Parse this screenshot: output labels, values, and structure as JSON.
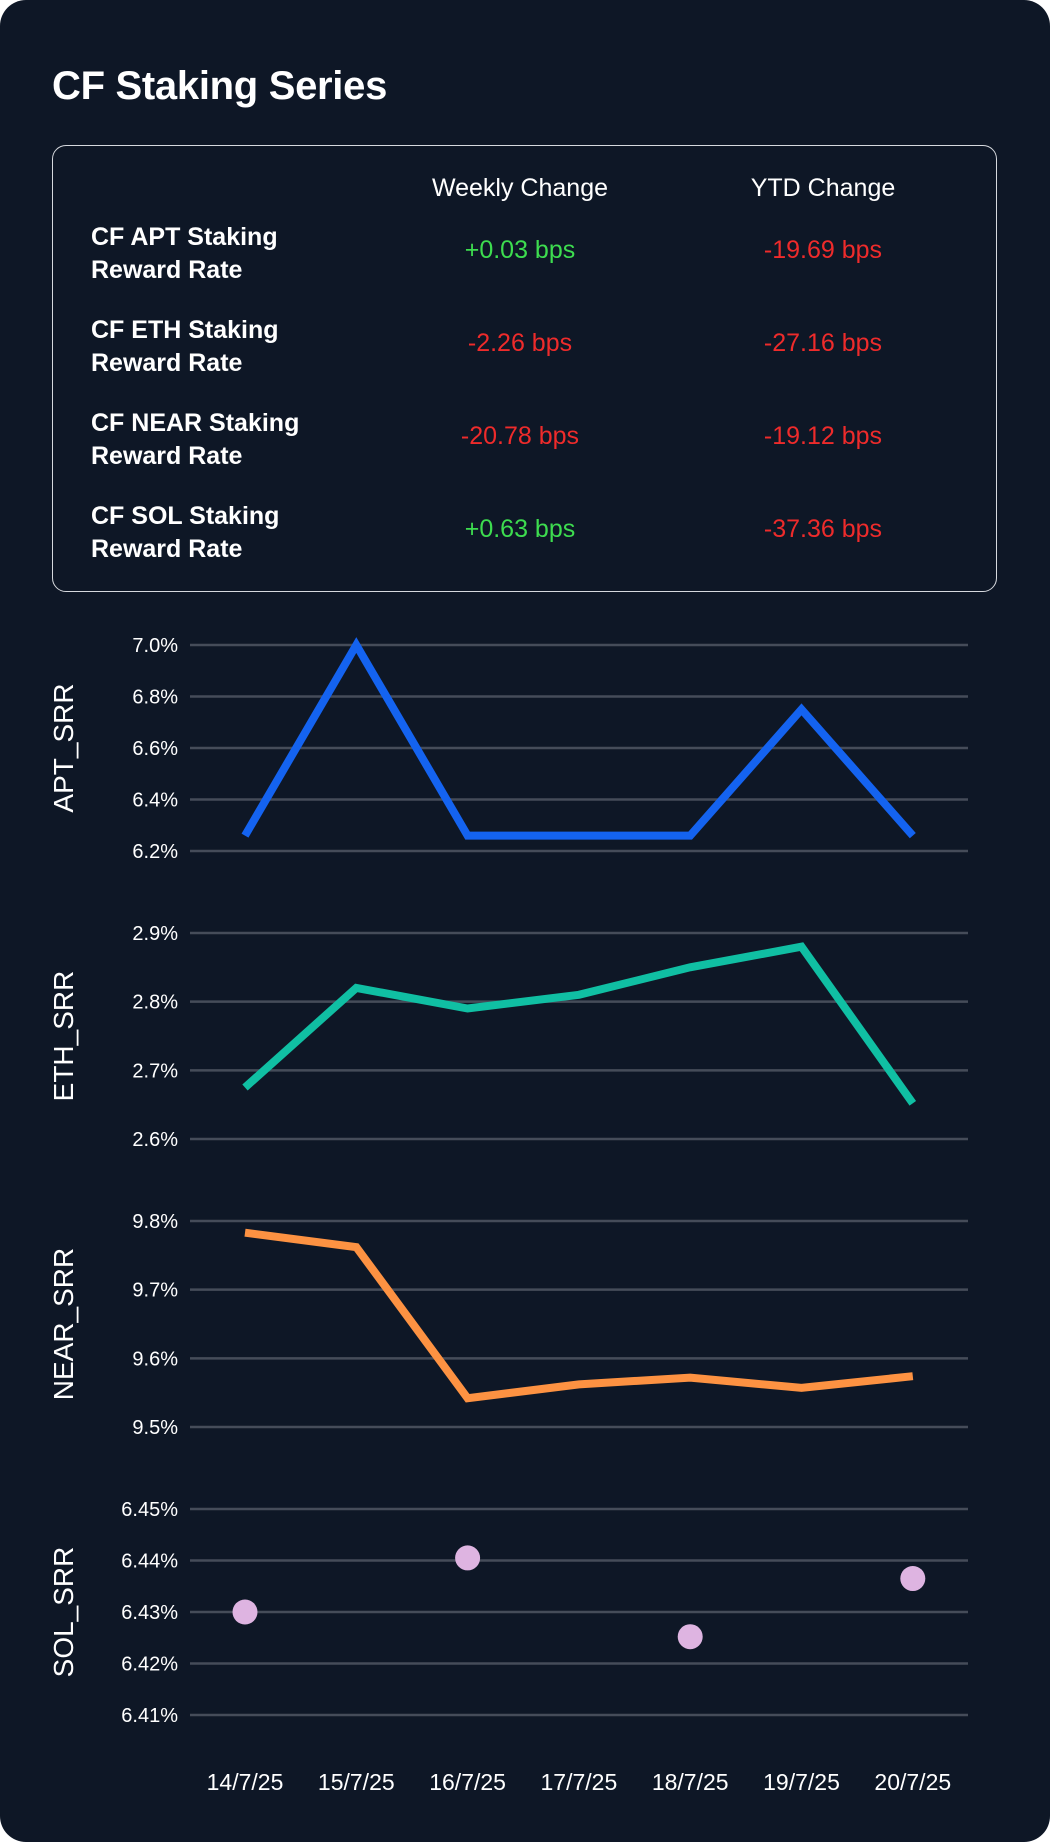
{
  "title": "CF Staking Series",
  "colors": {
    "positive": "#3ddc4f",
    "negative": "#ee2b2b",
    "background": "#0e1726",
    "grid": "#454c59"
  },
  "summary": {
    "headers": {
      "weekly": "Weekly Change",
      "ytd": "YTD Change"
    },
    "rows": [
      {
        "line1": "CF APT Staking",
        "line2": "Reward Rate",
        "weekly": "+0.03 bps",
        "weekly_sign": "positive",
        "ytd": "-19.69 bps",
        "ytd_sign": "negative"
      },
      {
        "line1": "CF ETH Staking",
        "line2": "Reward Rate",
        "weekly": "-2.26 bps",
        "weekly_sign": "negative",
        "ytd": "-27.16 bps",
        "ytd_sign": "negative"
      },
      {
        "line1": "CF NEAR Staking",
        "line2": "Reward Rate",
        "weekly": "-20.78 bps",
        "weekly_sign": "negative",
        "ytd": "-19.12 bps",
        "ytd_sign": "negative"
      },
      {
        "line1": "CF SOL Staking",
        "line2": "Reward Rate",
        "weekly": "+0.63 bps",
        "weekly_sign": "positive",
        "ytd": "-37.36 bps",
        "ytd_sign": "negative"
      }
    ]
  },
  "chart_data": {
    "type": "line",
    "categories": [
      "14/7/25",
      "15/7/25",
      "16/7/25",
      "17/7/25",
      "18/7/25",
      "19/7/25",
      "20/7/25"
    ],
    "panels": [
      {
        "name": "APT_SRR",
        "style": "line",
        "color": "#1463f0",
        "ylim": [
          6.2,
          7.0
        ],
        "ticks": [
          "6.2%",
          "6.4%",
          "6.6%",
          "6.8%",
          "7.0%"
        ],
        "values": [
          6.26,
          7.0,
          6.26,
          6.26,
          6.26,
          6.75,
          6.26
        ]
      },
      {
        "name": "ETH_SRR",
        "style": "line",
        "color": "#10bfa3",
        "ylim": [
          2.6,
          2.9
        ],
        "ticks": [
          "2.6%",
          "2.7%",
          "2.8%",
          "2.9%"
        ],
        "values": [
          2.675,
          2.82,
          2.79,
          2.81,
          2.85,
          2.88,
          2.652
        ]
      },
      {
        "name": "NEAR_SRR",
        "style": "line",
        "color": "#fd9242",
        "ylim": [
          9.5,
          9.8
        ],
        "ticks": [
          "9.5%",
          "9.6%",
          "9.7%",
          "9.8%"
        ],
        "values": [
          9.783,
          9.762,
          9.542,
          9.562,
          9.572,
          9.557,
          9.574
        ]
      },
      {
        "name": "SOL_SRR",
        "style": "scatter",
        "color": "#deb4e1",
        "ylim": [
          6.41,
          6.45
        ],
        "ticks": [
          "6.41%",
          "6.42%",
          "6.43%",
          "6.44%",
          "6.45%"
        ],
        "values": [
          6.43,
          null,
          6.4405,
          null,
          6.4252,
          null,
          6.4365
        ]
      }
    ]
  }
}
